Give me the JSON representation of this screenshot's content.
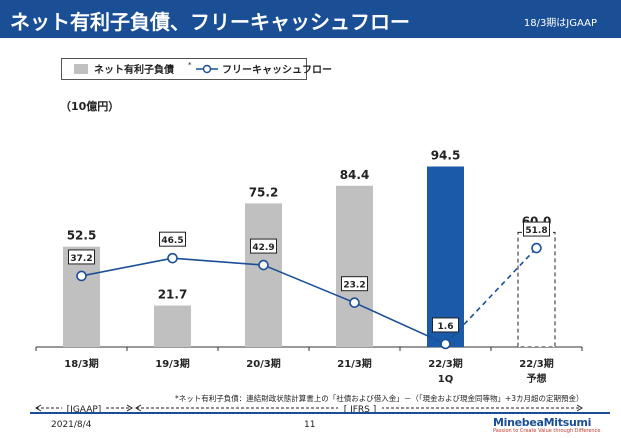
{
  "header": {
    "title": "ネット有利子負債、フリーキャッシュフロー",
    "note": "18/3期はJGAAP"
  },
  "unit_label": "（10億円）",
  "legend": {
    "bar_label": "ネット有利子負債",
    "bar_mark": "*",
    "line_label": "フリーキャッシュフロー"
  },
  "colors": {
    "header": "#1a4f96",
    "bar": "#c0c0c0",
    "bar_highlight": "#1a5aa8",
    "line": "#1a4f96"
  },
  "chart_data": {
    "type": "bar",
    "categories": [
      "18/3期",
      "19/3期",
      "20/3期",
      "21/3期",
      "22/3期",
      "22/3期"
    ],
    "category_sublabels": [
      "",
      "",
      "",
      "",
      "1Q",
      "予想"
    ],
    "series": [
      {
        "name": "ネット有利子負債",
        "type": "bar",
        "values": [
          52.5,
          21.7,
          75.2,
          84.4,
          94.5,
          60.0
        ],
        "styles": [
          "gray",
          "gray",
          "gray",
          "gray",
          "highlight",
          "dashed-outline"
        ]
      },
      {
        "name": "フリーキャッシュフロー",
        "type": "line",
        "values": [
          37.2,
          46.5,
          42.9,
          23.2,
          1.6,
          51.8
        ],
        "segment_styles": [
          "solid",
          "solid",
          "solid",
          "solid",
          "dashed"
        ]
      }
    ],
    "ylim": [
      0,
      100
    ],
    "grid": false
  },
  "footnote": "*ネット有利子負債：連結財政状態計算書上の「社債および借入金」－（「現金および現金同等物」+3カ月超の定期預金）",
  "periods": {
    "jgaap": "[JGAAP]",
    "ifrs": "[ IFRS ]"
  },
  "footer": {
    "date": "2021/8/4",
    "page": "11",
    "logo_name": "MinebeaMitsumi",
    "logo_tagline": "Passion to Create Value through Difference"
  }
}
